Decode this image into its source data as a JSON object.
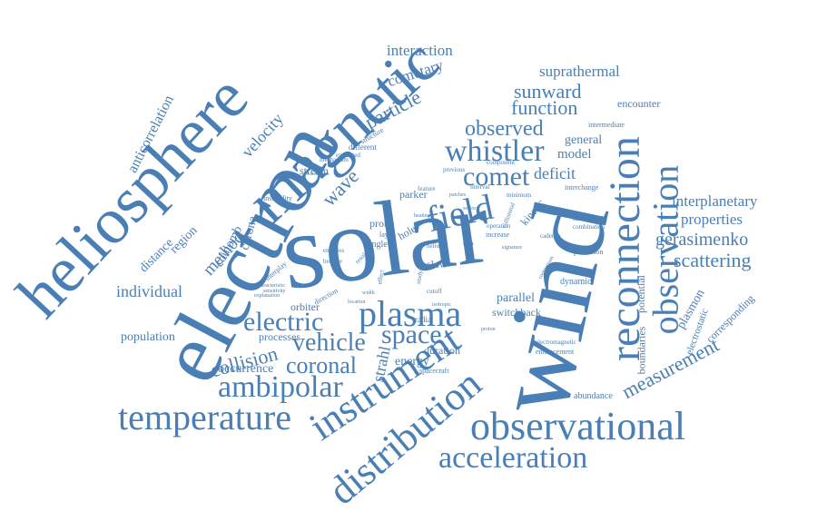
{
  "colors": {
    "word": "#4a7fb5",
    "background": "#ffffff"
  },
  "words": {
    "solar": "solar",
    "wind": "wind",
    "electron": "electron",
    "heliosphere": "heliosphere",
    "magnetic": "magnetic",
    "reconnection": "reconnection",
    "observational": "observational",
    "distribution": "distribution",
    "instrument": "instrument",
    "temperature": "temperature",
    "acceleration": "acceleration",
    "plasma": "plasma",
    "field": "field",
    "observation": "observation",
    "ambipolar": "ambipolar",
    "whistler": "whistler",
    "comet": "comet",
    "observed": "observed",
    "electric": "electric",
    "space": "space",
    "vehicle": "vehicle",
    "coronal": "coronal",
    "collision": "collision",
    "measurement": "measurement",
    "scattering": "scattering",
    "gerasimenko": "gerasimenko",
    "properties": "properties",
    "interplanetary": "interplanetary",
    "suprathermal": "suprathermal",
    "sunward": "sunward",
    "function": "function",
    "particle": "particle",
    "cometary": "cometary",
    "interaction": "interaction",
    "deficit": "deficit",
    "model": "model",
    "general": "general",
    "velocity": "velocity",
    "method": "method",
    "distance": "distance",
    "region": "region",
    "individual": "individual",
    "population": "population",
    "anticorrelation": "anticorrelation",
    "coulomb": "coulomb",
    "corona": "corona",
    "wave": "wave",
    "stream": "stream",
    "strahl": "strahl",
    "energy": "energy",
    "occurrence": "occurrence",
    "processes": "processes",
    "orbiter": "orbiter",
    "duration": "duration",
    "parallel": "parallel",
    "switchback": "switchback",
    "potential": "potential",
    "plasmon": "plasmon",
    "boundaries": "boundaries",
    "electrostatic": "electrostatic",
    "corresponding": "corresponding",
    "abundance": "abundance",
    "encounter": "encounter",
    "intermediate": "intermediate",
    "parker": "parker",
    "probe": "probe",
    "kinetic": "kinetic",
    "hole": "hole",
    "slow": "slow",
    "dynamic": "dynamic",
    "prediction": "prediction",
    "interchange": "interchange",
    "increase": "increase",
    "layer": "layer",
    "angle": "angle",
    "radial": "radial",
    "spacecraft": "spacecraft",
    "enhancement": "enhancement",
    "electromagnetic": "electromagnetic",
    "different": "different",
    "structure": "structure",
    "instability": "instability",
    "mechanism": "mechanism",
    "interplay": "interplay",
    "direction": "direction",
    "component": "component",
    "previous": "previous",
    "feature": "feature",
    "interval": "interval",
    "cadence": "cadence",
    "narrowband": "narrowband",
    "combination": "combination",
    "estimated": "estimated",
    "broader": "broader",
    "energies": "energies",
    "effect": "effect",
    "study": "study",
    "cutoff": "cutoff",
    "helium": "helium",
    "minimum": "minimum",
    "collisional": "collisional",
    "operation": "operation",
    "data": "data",
    "results": "results",
    "explanation": "explanation",
    "characteristic": "characteristic",
    "sensitivity": "sensitivity",
    "patches": "patches",
    "comparison": "comparison",
    "isotropic": "isotropic",
    "width": "width",
    "proton": "proton",
    "location": "location",
    "heating": "heating",
    "collisionless": "collisionless",
    "sector": "sector",
    "signature": "signature"
  }
}
